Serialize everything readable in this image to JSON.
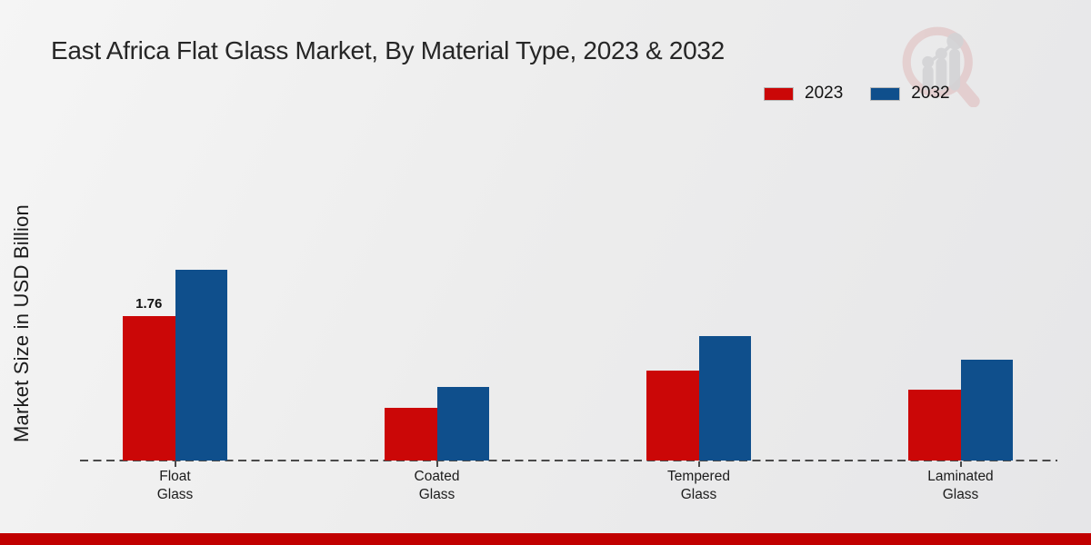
{
  "title": "East Africa Flat Glass Market, By Material Type, 2023 & 2032",
  "y_axis_label": "Market Size in USD Billion",
  "legend": {
    "items": [
      {
        "label": "2023",
        "color": "#cb0707"
      },
      {
        "label": "2032",
        "color": "#0f4f8c"
      }
    ]
  },
  "footer": {
    "bar_color": "#c10000"
  },
  "icons": {
    "watermark": "magnifier-barchart-logo"
  },
  "chart_data": {
    "type": "bar",
    "categories": [
      "Float Glass",
      "Coated Glass",
      "Tempered Glass",
      "Laminated Glass"
    ],
    "series": [
      {
        "name": "2023",
        "color": "#cb0707",
        "values": [
          1.76,
          0.64,
          1.1,
          0.86
        ]
      },
      {
        "name": "2032",
        "color": "#0f4f8c",
        "values": [
          2.33,
          0.9,
          1.52,
          1.23
        ]
      }
    ],
    "bar_labels": [
      {
        "series": "2023",
        "category": "Float Glass",
        "text": "1.76"
      }
    ],
    "title": "East Africa Flat Glass Market, By Material Type, 2023 & 2032",
    "xlabel": "",
    "ylabel": "Market Size in USD Billion",
    "ylim": [
      0,
      2.6
    ],
    "grid": false,
    "legend_position": "top-right",
    "baseline_style": "dashed"
  }
}
